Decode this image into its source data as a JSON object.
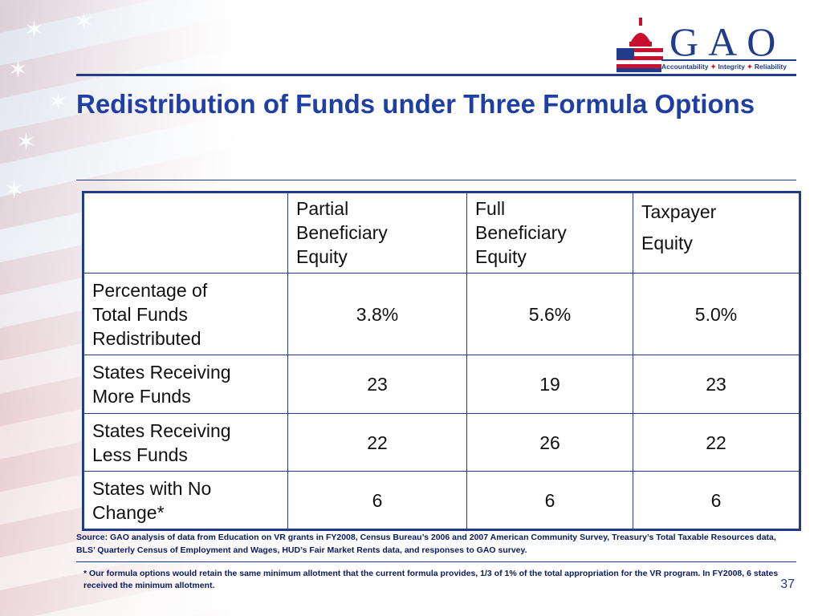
{
  "logo": {
    "word": "GAO",
    "tagline_parts": [
      "Accountability",
      "Integrity",
      "Reliability"
    ],
    "colors": {
      "navy": "#1f3b8a",
      "red": "#c8102e"
    },
    "icon": "capitol-flag-icon"
  },
  "slide": {
    "title": "Redistribution of Funds under Three Formula Options",
    "page_number": "37",
    "title_color": "#1f3fa5"
  },
  "table": {
    "columns": [
      "",
      [
        "Partial",
        "Beneficiary",
        "Equity"
      ],
      [
        "Full",
        "Beneficiary",
        "Equity"
      ],
      [
        "Taxpayer",
        "Equity"
      ]
    ],
    "rows": [
      {
        "label": [
          "Percentage of",
          "Total Funds",
          "Redistributed"
        ],
        "values": [
          "3.8%",
          "5.6%",
          "5.0%"
        ]
      },
      {
        "label": [
          "States Receiving",
          "More Funds"
        ],
        "values": [
          "23",
          "19",
          "23"
        ]
      },
      {
        "label": [
          "States Receiving",
          "Less Funds"
        ],
        "values": [
          "22",
          "26",
          "22"
        ]
      },
      {
        "label": [
          "States with No",
          "Change*"
        ],
        "values": [
          "6",
          "6",
          "6"
        ]
      }
    ]
  },
  "source_text": "Source: GAO analysis of data from Education on VR grants in FY2008, Census Bureau’s 2006 and 2007 American Community Survey, Treasury’s Total Taxable Resources data, BLS’ Quarterly Census of Employment and Wages, HUD’s Fair Market Rents data, and responses to GAO survey.",
  "footnote_text": "* Our formula options would retain the same minimum allotment that the current formula provides, 1/3 of 1% of the total appropriation for the VR program. In FY2008, 6 states received the minimum allotment."
}
